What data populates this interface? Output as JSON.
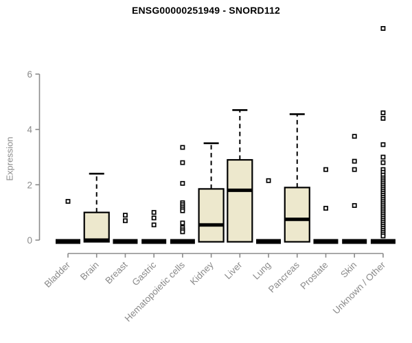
{
  "chart_data": {
    "type": "boxplot",
    "title": "ENSG00000251949 - SNORD112",
    "ylabel": "Expression",
    "xlabel": "",
    "ylim": [
      0,
      6
    ],
    "yticks": [
      0,
      2,
      4,
      6
    ],
    "grid": false,
    "legend": "none",
    "colors": {
      "box_fill": "#EDE8CD",
      "box_line": "#000000",
      "axis": "#8a8a8a",
      "tick_label": "#8a8a8a",
      "title": "#000000"
    },
    "boxes": [
      {
        "label": "Bladder",
        "q1": 0,
        "median": 0,
        "q3": 0,
        "whisker_low": 0,
        "whisker_high": 0,
        "outliers": [
          1.4
        ]
      },
      {
        "label": "Brain",
        "q1": 0,
        "median": 0,
        "q3": 1.0,
        "whisker_low": 0,
        "whisker_high": 2.4,
        "outliers": []
      },
      {
        "label": "Breast",
        "q1": 0,
        "median": 0,
        "q3": 0,
        "whisker_low": 0,
        "whisker_high": 0,
        "outliers": [
          0.9,
          0.7
        ]
      },
      {
        "label": "Gastric",
        "q1": 0,
        "median": 0,
        "q3": 0,
        "whisker_low": 0,
        "whisker_high": 0,
        "outliers": [
          1.0,
          0.8,
          0.55
        ]
      },
      {
        "label": "Hematopoietic cells",
        "q1": 0,
        "median": 0,
        "q3": 0,
        "whisker_low": 0,
        "whisker_high": 0,
        "outliers": [
          3.35,
          2.8,
          2.05,
          1.35,
          1.28,
          1.2,
          1.13,
          1.06,
          0.62,
          0.45,
          0.37,
          0.3
        ]
      },
      {
        "label": "Kidney",
        "q1": 0,
        "median": 0.55,
        "q3": 1.85,
        "whisker_low": 0,
        "whisker_high": 3.5,
        "outliers": []
      },
      {
        "label": "Liver",
        "q1": 0,
        "median": 1.8,
        "q3": 2.9,
        "whisker_low": 0,
        "whisker_high": 4.7,
        "outliers": []
      },
      {
        "label": "Lung",
        "q1": 0,
        "median": 0,
        "q3": 0,
        "whisker_low": 0,
        "whisker_high": 0,
        "outliers": [
          2.15
        ]
      },
      {
        "label": "Pancreas",
        "q1": 0,
        "median": 0.75,
        "q3": 1.9,
        "whisker_low": 0,
        "whisker_high": 4.55,
        "outliers": []
      },
      {
        "label": "Prostate",
        "q1": 0,
        "median": 0,
        "q3": 0,
        "whisker_low": 0,
        "whisker_high": 0,
        "outliers": [
          2.55,
          1.15
        ]
      },
      {
        "label": "Skin",
        "q1": 0,
        "median": 0,
        "q3": 0,
        "whisker_low": 0,
        "whisker_high": 0,
        "outliers": [
          3.75,
          2.85,
          2.55,
          1.25
        ]
      },
      {
        "label": "Unknown / Other",
        "q1": 0,
        "median": 0,
        "q3": 0,
        "whisker_low": 0,
        "whisker_high": 0,
        "outliers": [
          7.65,
          4.6,
          4.4,
          3.45,
          3.0,
          2.8,
          2.55,
          2.45,
          2.35,
          2.25,
          2.18,
          2.11,
          2.04,
          1.97,
          1.9,
          1.83,
          1.76,
          1.69,
          1.62,
          1.55,
          1.48,
          1.41,
          1.34,
          1.27,
          1.2,
          1.13,
          1.06,
          0.99,
          0.92,
          0.85,
          0.78,
          0.71,
          0.64,
          0.57,
          0.5,
          0.43,
          0.36,
          0.29,
          0.22,
          0.15
        ]
      }
    ]
  }
}
